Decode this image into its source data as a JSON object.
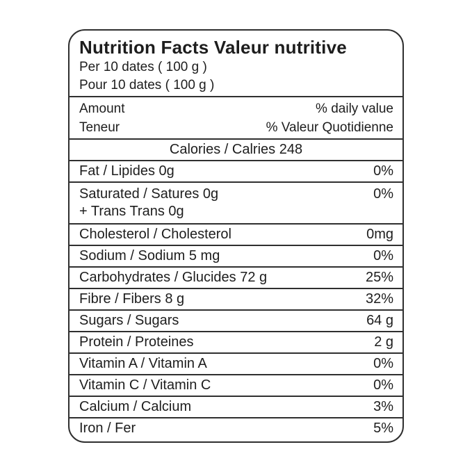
{
  "nutrition": {
    "title": "Nutrition Facts Valeur nutritive",
    "serving": {
      "en": "Per 10 dates ( 100 g )",
      "fr": "Pour 10 dates ( 100 g )"
    },
    "header": {
      "amount_en": "Amount",
      "daily_value_en": "% daily value",
      "amount_fr": "Teneur",
      "daily_value_fr": "% Valeur Quotidienne"
    },
    "calories": "Calories / Calries 248",
    "rows": [
      {
        "label": "Fat / Lipides 0g",
        "value": "0%"
      },
      {
        "label": "Saturated / Satures 0g",
        "sub": "+ Trans Trans 0g",
        "value": "0%"
      },
      {
        "label": "Cholesterol / Cholesterol",
        "value": "0mg"
      },
      {
        "label": "Sodium / Sodium 5 mg",
        "value": "0%"
      },
      {
        "label": "Carbohydrates / Glucides 72 g",
        "value": "25%"
      },
      {
        "label": "Fibre / Fibers 8 g",
        "value": "32%"
      },
      {
        "label": "Sugars / Sugars",
        "value": "64 g"
      },
      {
        "label": "Protein / Proteines",
        "value": "2 g"
      },
      {
        "label": "Vitamin A / Vitamin A",
        "value": "0%"
      },
      {
        "label": "Vitamin C / Vitamin C",
        "value": "0%"
      },
      {
        "label": "Calcium / Calcium",
        "value": "3%"
      },
      {
        "label": "Iron / Fer",
        "value": "5%"
      }
    ],
    "colors": {
      "border": "#2f2f2f",
      "text": "#1d1d1d",
      "background": "#ffffff"
    }
  }
}
